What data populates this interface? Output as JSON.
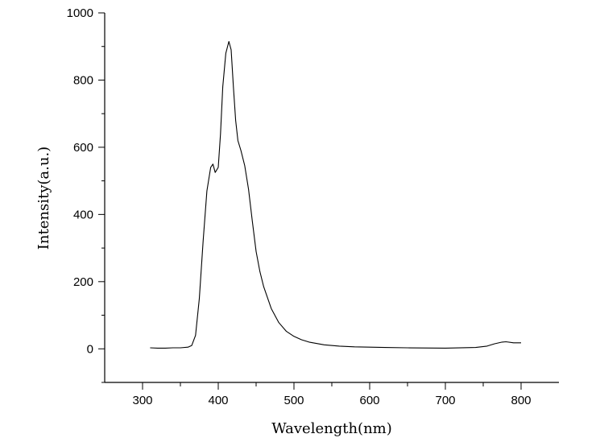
{
  "chart_data": {
    "type": "line",
    "xlabel": "Wavelength(nm)",
    "ylabel": "Intensity(a.u.)",
    "xlim": [
      250,
      850
    ],
    "ylim": [
      -100,
      1000
    ],
    "x_ticks": [
      "300",
      "400",
      "500",
      "600",
      "700",
      "800"
    ],
    "y_ticks": [
      "0",
      "200",
      "400",
      "600",
      "800",
      "1000"
    ],
    "grid": false,
    "legend": "none",
    "line_color": "#000000",
    "series": [
      {
        "x": [
          310,
          320,
          330,
          340,
          350,
          360,
          365,
          370,
          375,
          380,
          385,
          390,
          393,
          396,
          400,
          403,
          406,
          410,
          414,
          417,
          420,
          423,
          426,
          430,
          435,
          440,
          445,
          450,
          455,
          460,
          470,
          480,
          490,
          500,
          510,
          520,
          540,
          560,
          580,
          600,
          620,
          650,
          700,
          740,
          755,
          765,
          775,
          780,
          790,
          800
        ],
        "y": [
          3,
          2,
          2,
          3,
          3,
          5,
          10,
          40,
          150,
          320,
          470,
          540,
          550,
          525,
          540,
          640,
          780,
          880,
          915,
          890,
          780,
          680,
          620,
          590,
          545,
          475,
          380,
          290,
          230,
          185,
          120,
          78,
          52,
          37,
          27,
          20,
          12,
          8,
          6,
          5,
          4,
          3,
          2,
          4,
          8,
          15,
          20,
          21,
          18,
          18
        ]
      }
    ]
  }
}
